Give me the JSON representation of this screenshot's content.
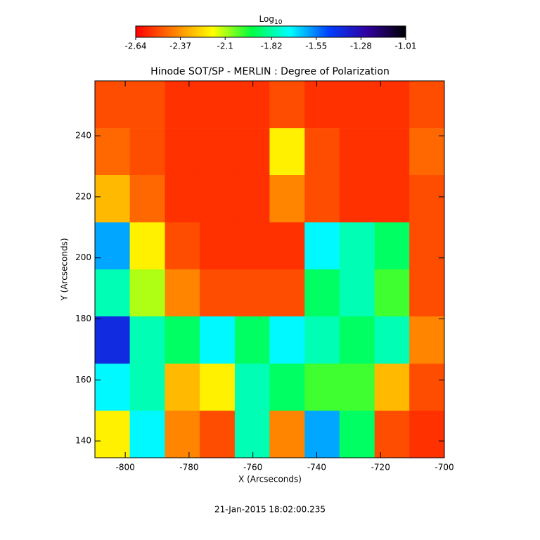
{
  "chart_data": {
    "type": "heatmap",
    "title": "Hinode SOT/SP - MERLIN : Degree of Polarization",
    "colorbar_title": {
      "base": "Log",
      "subscript": "10"
    },
    "xlabel": "X (Arcseconds)",
    "ylabel": "Y (Arcseconds)",
    "annotation": "21-Jan-2015 18:02:00.235",
    "xlim": [
      -809.5,
      -700
    ],
    "ylim": [
      134.5,
      258
    ],
    "xticks": [
      -800,
      -780,
      -760,
      -740,
      -720,
      -700
    ],
    "yticks": [
      140,
      160,
      180,
      200,
      220,
      240
    ],
    "zlim": [
      -2.64,
      -1.01
    ],
    "colorbar_ticks": [
      -2.64,
      -2.37,
      -2.1,
      -1.82,
      -1.55,
      -1.28,
      -1.01
    ],
    "colorscale": [
      "#ff0000",
      "#ff8000",
      "#ffff00",
      "#00ff40",
      "#00ffff",
      "#0040ff",
      "#3000a0",
      "#000000"
    ],
    "x": [
      -804.0,
      -793.1,
      -782.1,
      -771.2,
      -760.2,
      -749.3,
      -738.3,
      -727.4,
      -716.4,
      -705.5
    ],
    "y": [
      250.3,
      234.8,
      219.4,
      203.9,
      188.5,
      173.1,
      157.6,
      142.2
    ],
    "z": [
      [
        -2.5,
        -2.5,
        -2.55,
        -2.55,
        -2.55,
        -2.5,
        -2.55,
        -2.55,
        -2.55,
        -2.5
      ],
      [
        -2.45,
        -2.5,
        -2.55,
        -2.55,
        -2.55,
        -2.2,
        -2.5,
        -2.55,
        -2.55,
        -2.45
      ],
      [
        -2.3,
        -2.45,
        -2.55,
        -2.55,
        -2.55,
        -2.4,
        -2.5,
        -2.55,
        -2.55,
        -2.5
      ],
      [
        -1.6,
        -2.2,
        -2.5,
        -2.55,
        -2.55,
        -2.55,
        -1.7,
        -1.8,
        -1.9,
        -2.5
      ],
      [
        -1.8,
        -2.1,
        -2.4,
        -2.5,
        -2.5,
        -2.5,
        -1.9,
        -1.8,
        -2.0,
        -2.5
      ],
      [
        -1.4,
        -1.8,
        -1.9,
        -1.7,
        -1.9,
        -1.7,
        -1.8,
        -1.9,
        -1.8,
        -2.4
      ],
      [
        -1.7,
        -1.8,
        -2.3,
        -2.2,
        -1.8,
        -1.9,
        -2.0,
        -2.0,
        -2.3,
        -2.5
      ],
      [
        -2.2,
        -1.7,
        -2.4,
        -2.5,
        -1.8,
        -2.4,
        -1.6,
        -1.9,
        -2.5,
        -2.55
      ]
    ]
  }
}
